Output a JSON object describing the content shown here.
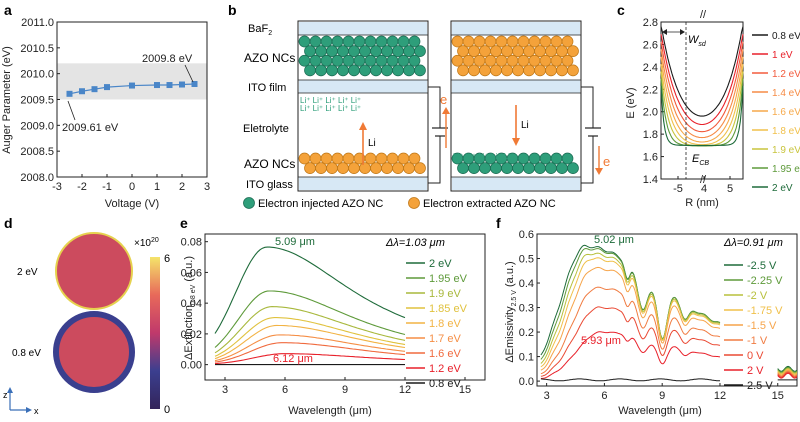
{
  "panels": {
    "a": "a",
    "b": "b",
    "c": "c",
    "d": "d",
    "e": "e",
    "f": "f"
  },
  "chart_data": [
    {
      "id": "a",
      "type": "line",
      "xlabel": "Voltage (V)",
      "ylabel": "Auger Parameter (eV)",
      "xlim": [
        -3,
        3
      ],
      "ylim": [
        2008.0,
        2011.0
      ],
      "xticks": [
        "-3",
        "-2",
        "-1",
        "0",
        "1",
        "2",
        "3"
      ],
      "yticks": [
        "2008.0",
        "2008.5",
        "2009.0",
        "2009.5",
        "2010.0",
        "2010.5",
        "2011.0"
      ],
      "band": [
        2009.5,
        2010.2
      ],
      "x": [
        -2.5,
        -2.0,
        -1.5,
        -1.0,
        0.0,
        1.0,
        1.5,
        2.0,
        2.5
      ],
      "y": [
        2009.61,
        2009.66,
        2009.7,
        2009.74,
        2009.77,
        2009.78,
        2009.78,
        2009.79,
        2009.8
      ],
      "annotations": [
        "2009.61 eV",
        "2009.8 eV"
      ],
      "color": "#4a86c8"
    },
    {
      "id": "c",
      "type": "line",
      "xlabel": "R (nm)",
      "ylabel": "E (eV)",
      "ylim": [
        1.4,
        2.8
      ],
      "yticks": [
        "1.4",
        "1.6",
        "1.8",
        "2.0",
        "2.2",
        "2.4",
        "2.6",
        "2.8"
      ],
      "xticks": [
        "-5",
        "4",
        "5"
      ],
      "annotations": [
        "W",
        "sd",
        "E",
        "CB"
      ],
      "series": [
        {
          "name": "0.8 eV",
          "color": "#1a1a1a"
        },
        {
          "name": "1 eV",
          "color": "#e8202a"
        },
        {
          "name": "1.2 eV",
          "color": "#f25a3c"
        },
        {
          "name": "1.4 eV",
          "color": "#f68b45"
        },
        {
          "name": "1.6 eV",
          "color": "#f6a94a"
        },
        {
          "name": "1.8 eV",
          "color": "#f0c04a"
        },
        {
          "name": "1.9 eV",
          "color": "#c8c43c"
        },
        {
          "name": "1.95 eV",
          "color": "#5e9a3a"
        },
        {
          "name": "2 eV",
          "color": "#1e6b3a"
        }
      ]
    },
    {
      "id": "e",
      "type": "line",
      "xlabel": "Wavelength (μm)",
      "ylabel": "ΔExtinction",
      "ylabel_sub": "0.8 eV",
      "ylabel_unit": " (a.u.)",
      "xlim": [
        2,
        16
      ],
      "ylim": [
        -0.01,
        0.085
      ],
      "xticks": [
        "3",
        "6",
        "9",
        "12",
        "15"
      ],
      "yticks": [
        "0.00",
        "0.02",
        "0.04",
        "0.06",
        "0.08"
      ],
      "annotations": [
        "5.09 μm",
        "6.12 μm",
        "Δλ=1.03 μm"
      ],
      "series": [
        {
          "name": "2 eV",
          "color": "#1e6b3a",
          "peak": 0.075
        },
        {
          "name": "1.95 eV",
          "color": "#5e9a3a",
          "peak": 0.047
        },
        {
          "name": "1.9 eV",
          "color": "#a8b83c",
          "peak": 0.037
        },
        {
          "name": "1.85 eV",
          "color": "#e0c23e",
          "peak": 0.03
        },
        {
          "name": "1.8 eV",
          "color": "#f2b344",
          "peak": 0.025
        },
        {
          "name": "1.7 eV",
          "color": "#f58e45",
          "peak": 0.019
        },
        {
          "name": "1.6 eV",
          "color": "#f06a3e",
          "peak": 0.014
        },
        {
          "name": "1.2 eV",
          "color": "#e8202a",
          "peak": 0.007
        },
        {
          "name": "0.8 eV",
          "color": "#1a1a1a",
          "peak": 0.0
        }
      ]
    },
    {
      "id": "f",
      "type": "line",
      "xlabel": "Wavelength (μm)",
      "ylabel": "ΔEmissivity",
      "ylabel_sub": "2.5 V",
      "ylabel_unit": " (a.u.)",
      "xlim": [
        2.5,
        16
      ],
      "ylim": [
        -0.02,
        0.6
      ],
      "xticks": [
        "3",
        "6",
        "9",
        "12",
        "15"
      ],
      "yticks": [
        "0.0",
        "0.1",
        "0.2",
        "0.3",
        "0.4",
        "0.5",
        "0.6"
      ],
      "annotations": [
        "5.02 μm",
        "5.93 μm",
        "Δλ=0.91 μm"
      ],
      "series": [
        {
          "name": "-2.5 V",
          "color": "#1e6b3a",
          "peak": 0.55
        },
        {
          "name": "-2.25 V",
          "color": "#5e9a3a",
          "peak": 0.54
        },
        {
          "name": "-2 V",
          "color": "#b8c03c",
          "peak": 0.52
        },
        {
          "name": "-1.75 V",
          "color": "#f0c04a",
          "peak": 0.5
        },
        {
          "name": "-1.5 V",
          "color": "#f6a44a",
          "peak": 0.46
        },
        {
          "name": "-1 V",
          "color": "#f07c42",
          "peak": 0.38
        },
        {
          "name": "0 V",
          "color": "#ea4a34",
          "peak": 0.3
        },
        {
          "name": "2 V",
          "color": "#e8202a",
          "peak": 0.2
        },
        {
          "name": "2.5 V",
          "color": "#1a1a1a",
          "peak": 0.0
        }
      ]
    }
  ],
  "schematic": {
    "baf2": "BaF",
    "baf2_sub": "2",
    "azo_top": "AZO NCs",
    "ito_film": "ITO film",
    "electrolyte": "Eletrolyte",
    "azo_bottom": "AZO NCs",
    "ito_glass": "ITO glass",
    "li": "Li",
    "e": "e",
    "li_row": "Li⁺ Li⁺ Li⁺ Li⁺ Li⁺",
    "legend_injected": "Electron injected AZO NC",
    "legend_extracted": "Electron extracted AZO NC",
    "color_injected": "#2e9e7a",
    "color_extracted": "#f4a23a"
  },
  "panel_d": {
    "scale_label": "×10",
    "scale_exp": "20",
    "scale_max": "6",
    "scale_min": "0",
    "label_2ev": "2 eV",
    "label_08ev": "0.8 eV",
    "axis_z": "z",
    "axis_x": "x"
  }
}
